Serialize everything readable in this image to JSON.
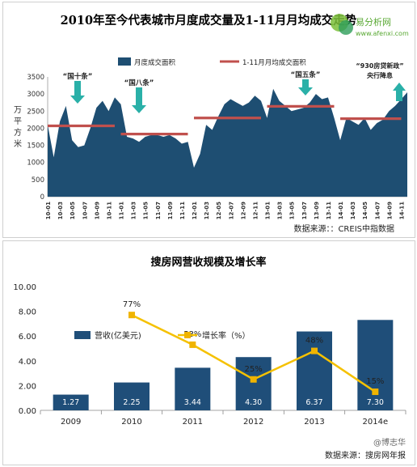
{
  "chart_data": [
    {
      "type": "area",
      "title": "2010年至今代表城市月度成交量及1-11月月均成交走势",
      "ylabel": "万平方米",
      "ylim": [
        0,
        3500
      ],
      "yticks": [
        0,
        500,
        1000,
        1500,
        2000,
        2500,
        3000,
        3500
      ],
      "x_tick_labels": [
        "10-01",
        "10-03",
        "10-05",
        "10-07",
        "10-09",
        "10-11",
        "11-01",
        "11-03",
        "11-05",
        "11-07",
        "11-09",
        "11-11",
        "12-01",
        "12-03",
        "12-05",
        "12-07",
        "12-09",
        "12-11",
        "13-01",
        "13-03",
        "13-05",
        "13-07",
        "13-09",
        "13-11",
        "14-01",
        "14-03",
        "14-05",
        "14-07",
        "14-09",
        "14-11"
      ],
      "series": [
        {
          "name": "月度成交面积",
          "values": [
            2100,
            1150,
            2200,
            2650,
            1650,
            1450,
            1500,
            2000,
            2600,
            2800,
            2500,
            2900,
            2700,
            1750,
            1700,
            1600,
            1750,
            1800,
            1800,
            1750,
            1800,
            1700,
            1550,
            1600,
            850,
            1250,
            2100,
            1950,
            2350,
            2700,
            2850,
            2750,
            2650,
            2750,
            2950,
            2800,
            2300,
            3150,
            2800,
            2650,
            2500,
            2550,
            2600,
            2750,
            3000,
            2850,
            2900,
            2300,
            1650,
            2300,
            2200,
            2100,
            2300,
            1950,
            2150,
            2250,
            2500,
            2650,
            2850,
            3050
          ]
        }
      ],
      "averages": {
        "name": "1-11月月均成交面积",
        "segments": [
          {
            "from": "10-01",
            "to": "10-12",
            "value": 2070
          },
          {
            "from": "11-01",
            "to": "11-12",
            "value": 1830
          },
          {
            "from": "12-01",
            "to": "12-12",
            "value": 2300
          },
          {
            "from": "13-01",
            "to": "13-12",
            "value": 2640
          },
          {
            "from": "14-01",
            "to": "14-11",
            "value": 2280
          }
        ]
      },
      "annotations": [
        {
          "text": "“国十条”",
          "at": "10-04"
        },
        {
          "text": "“国八条”",
          "at": "11-01"
        },
        {
          "text": "“国五条”",
          "at": "13-07"
        },
        {
          "text": "“930房贷新政”",
          "at": "14-11"
        },
        {
          "text": "央行降息",
          "at": "14-11"
        }
      ],
      "source": "数据来源：：CREIS中指数据",
      "legend_position": "top"
    },
    {
      "type": "bar",
      "title": "搜房网营收规模及增长率",
      "categories": [
        "2009",
        "2010",
        "2011",
        "2012",
        "2013",
        "2014e"
      ],
      "ylim": [
        0,
        10
      ],
      "yticks": [
        "0.00",
        "2.00",
        "4.00",
        "6.00",
        "8.00",
        "10.00"
      ],
      "series": [
        {
          "name": "营收(亿美元)",
          "values": [
            1.27,
            2.25,
            3.44,
            4.3,
            6.37,
            7.3
          ],
          "labels": [
            "1.27",
            "2.25",
            "3.44",
            "4.30",
            "6.37",
            "7.30"
          ]
        },
        {
          "name": "增长率（%）",
          "type": "line",
          "values": [
            null,
            77,
            53,
            25,
            48,
            15
          ],
          "labels": [
            "",
            "77%",
            "53%",
            "25%",
            "48%",
            "15%"
          ]
        }
      ],
      "source": "数据来源：搜房网年报",
      "legend_position": "middle-left"
    }
  ],
  "watermark": {
    "brand": "易分析网",
    "url": "www.afenxi.com"
  },
  "signature": "@博志华",
  "colors": {
    "area": "#1e4e72",
    "avg_line": "#c0504d",
    "arrow": "#2ab0a8",
    "bar": "#1f4e79",
    "line": "#f5c100",
    "line_marker": "#f0b400"
  }
}
